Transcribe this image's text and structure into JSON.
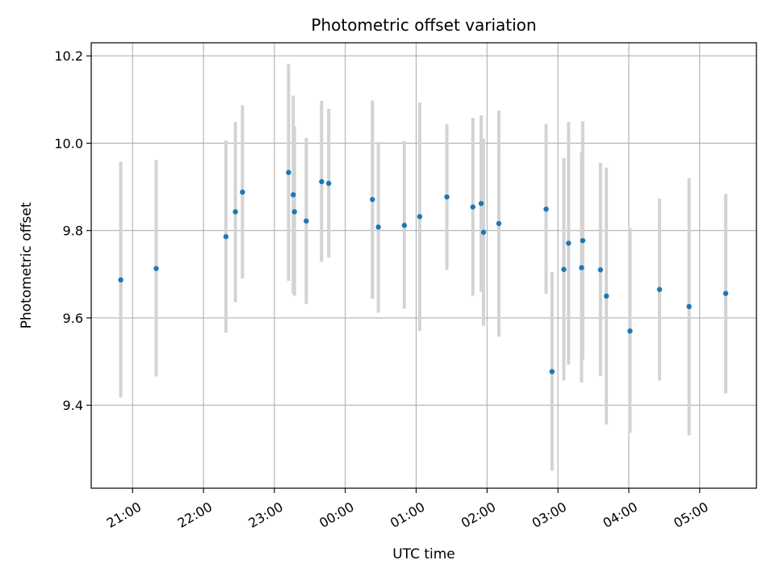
{
  "chart_data": {
    "type": "scatter",
    "title": "Photometric offset variation",
    "xlabel": "UTC time",
    "ylabel": "Photometric offset",
    "x_axis_kind": "time",
    "xlim": [
      "20:25",
      "05:48"
    ],
    "ylim": [
      9.21,
      10.23
    ],
    "x_ticks": [
      "21:00",
      "22:00",
      "23:00",
      "00:00",
      "01:00",
      "02:00",
      "03:00",
      "04:00",
      "05:00"
    ],
    "y_ticks": [
      9.4,
      9.6,
      9.8,
      10.0,
      10.2
    ],
    "y_tick_labels": [
      "9.4",
      "9.6",
      "9.8",
      "10.0",
      "10.2"
    ],
    "grid": true,
    "legend": "none",
    "colors": {
      "points": "#1f77b4",
      "error_bars": "#d3d3d3",
      "grid": "#b0b0b0"
    },
    "series": [
      {
        "points": [
          {
            "x": "20:50",
            "y": 9.687,
            "ylow": 9.418,
            "yhigh": 9.958
          },
          {
            "x": "21:20",
            "y": 9.713,
            "ylow": 9.466,
            "yhigh": 9.962
          },
          {
            "x": "22:19",
            "y": 9.786,
            "ylow": 9.566,
            "yhigh": 10.006
          },
          {
            "x": "22:27",
            "y": 9.843,
            "ylow": 9.636,
            "yhigh": 10.049
          },
          {
            "x": "22:33",
            "y": 9.888,
            "ylow": 9.69,
            "yhigh": 10.087
          },
          {
            "x": "23:12",
            "y": 9.933,
            "ylow": 9.685,
            "yhigh": 10.181
          },
          {
            "x": "23:16",
            "y": 9.882,
            "ylow": 9.656,
            "yhigh": 10.109
          },
          {
            "x": "23:17",
            "y": 9.843,
            "ylow": 9.651,
            "yhigh": 10.038
          },
          {
            "x": "23:27",
            "y": 9.822,
            "ylow": 9.632,
            "yhigh": 10.012
          },
          {
            "x": "23:40",
            "y": 9.912,
            "ylow": 9.728,
            "yhigh": 10.097
          },
          {
            "x": "23:46",
            "y": 9.908,
            "ylow": 9.738,
            "yhigh": 10.079
          },
          {
            "x": "00:23",
            "y": 9.871,
            "ylow": 9.644,
            "yhigh": 10.098
          },
          {
            "x": "00:28",
            "y": 9.808,
            "ylow": 9.612,
            "yhigh": 10.003
          },
          {
            "x": "00:50",
            "y": 9.812,
            "ylow": 9.621,
            "yhigh": 10.005
          },
          {
            "x": "01:03",
            "y": 9.832,
            "ylow": 9.57,
            "yhigh": 10.093
          },
          {
            "x": "01:26",
            "y": 9.877,
            "ylow": 9.71,
            "yhigh": 10.044
          },
          {
            "x": "01:48",
            "y": 9.854,
            "ylow": 9.651,
            "yhigh": 10.058
          },
          {
            "x": "01:55",
            "y": 9.862,
            "ylow": 9.66,
            "yhigh": 10.064
          },
          {
            "x": "01:57",
            "y": 9.796,
            "ylow": 9.582,
            "yhigh": 10.01
          },
          {
            "x": "02:10",
            "y": 9.816,
            "ylow": 9.557,
            "yhigh": 10.075
          },
          {
            "x": "02:50",
            "y": 9.849,
            "ylow": 9.655,
            "yhigh": 10.044
          },
          {
            "x": "02:55",
            "y": 9.477,
            "ylow": 9.25,
            "yhigh": 9.705
          },
          {
            "x": "03:05",
            "y": 9.711,
            "ylow": 9.457,
            "yhigh": 9.966
          },
          {
            "x": "03:09",
            "y": 9.771,
            "ylow": 9.493,
            "yhigh": 10.049
          },
          {
            "x": "03:20",
            "y": 9.715,
            "ylow": 9.452,
            "yhigh": 9.979
          },
          {
            "x": "03:21",
            "y": 9.777,
            "ylow": 9.505,
            "yhigh": 10.05
          },
          {
            "x": "03:36",
            "y": 9.71,
            "ylow": 9.467,
            "yhigh": 9.955
          },
          {
            "x": "03:41",
            "y": 9.65,
            "ylow": 9.356,
            "yhigh": 9.944
          },
          {
            "x": "04:01",
            "y": 9.57,
            "ylow": 9.337,
            "yhigh": 9.806
          },
          {
            "x": "04:26",
            "y": 9.665,
            "ylow": 9.457,
            "yhigh": 9.873
          },
          {
            "x": "04:51",
            "y": 9.626,
            "ylow": 9.331,
            "yhigh": 9.92
          },
          {
            "x": "05:22",
            "y": 9.656,
            "ylow": 9.427,
            "yhigh": 9.884
          }
        ]
      }
    ]
  }
}
